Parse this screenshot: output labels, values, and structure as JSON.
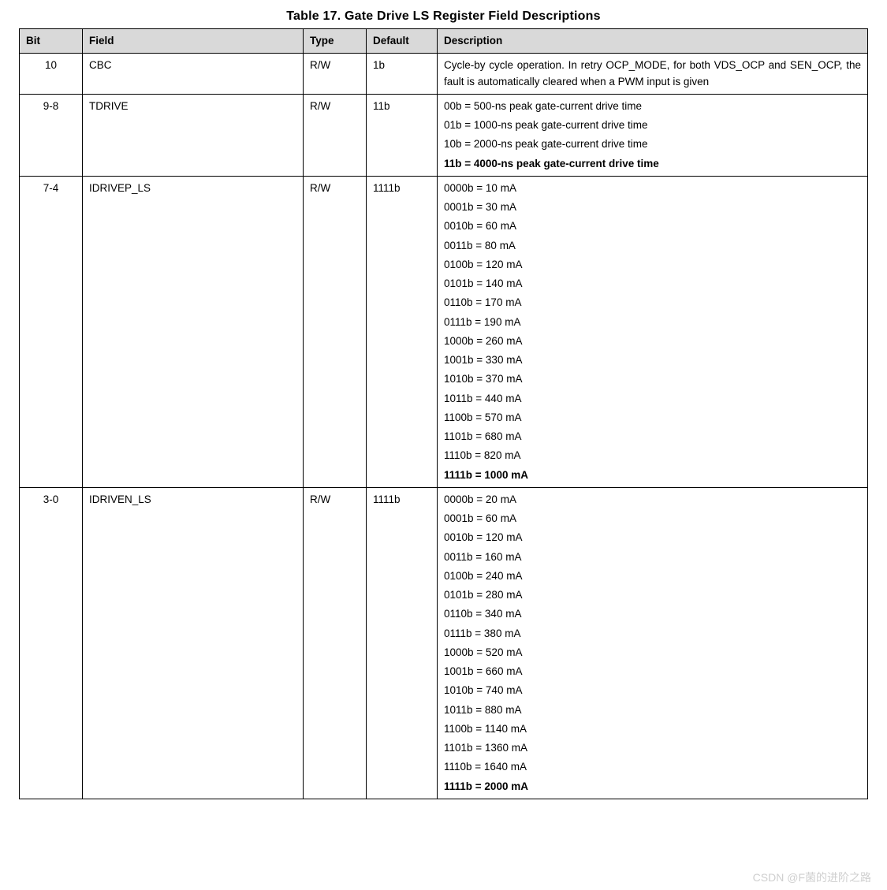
{
  "title": "Table 17. Gate Drive LS Register Field Descriptions",
  "columns": [
    "Bit",
    "Field",
    "Type",
    "Default",
    "Description"
  ],
  "rows": [
    {
      "bit": "10",
      "field": "CBC",
      "type": "R/W",
      "def": "1b",
      "desc": [
        {
          "text": "Cycle-by cycle operation. In retry OCP_MODE, for both VDS_OCP and SEN_OCP, the fault is automatically cleared when a PWM input is given",
          "bold": false,
          "justify": true
        }
      ]
    },
    {
      "bit": "9-8",
      "field": "TDRIVE",
      "type": "R/W",
      "def": "11b",
      "desc": [
        {
          "text": "00b = 500-ns peak gate-current drive time",
          "bold": false
        },
        {
          "text": "01b = 1000-ns peak gate-current drive time",
          "bold": false
        },
        {
          "text": "10b = 2000-ns peak gate-current drive time",
          "bold": false
        },
        {
          "text": "11b = 4000-ns peak gate-current drive time",
          "bold": true
        }
      ]
    },
    {
      "bit": "7-4",
      "field": "IDRIVEP_LS",
      "type": "R/W",
      "def": "1111b",
      "desc": [
        {
          "text": "0000b = 10 mA",
          "bold": false
        },
        {
          "text": "0001b = 30 mA",
          "bold": false
        },
        {
          "text": "0010b = 60 mA",
          "bold": false
        },
        {
          "text": "0011b = 80 mA",
          "bold": false
        },
        {
          "text": "0100b = 120 mA",
          "bold": false
        },
        {
          "text": "0101b = 140 mA",
          "bold": false
        },
        {
          "text": "0110b = 170 mA",
          "bold": false
        },
        {
          "text": "0111b = 190 mA",
          "bold": false
        },
        {
          "text": "1000b = 260 mA",
          "bold": false
        },
        {
          "text": "1001b = 330 mA",
          "bold": false
        },
        {
          "text": "1010b = 370 mA",
          "bold": false
        },
        {
          "text": "1011b = 440 mA",
          "bold": false
        },
        {
          "text": "1100b = 570 mA",
          "bold": false
        },
        {
          "text": "1101b = 680 mA",
          "bold": false
        },
        {
          "text": "1110b = 820 mA",
          "bold": false
        },
        {
          "text": "1111b = 1000 mA",
          "bold": true
        }
      ]
    },
    {
      "bit": "3-0",
      "field": "IDRIVEN_LS",
      "type": "R/W",
      "def": "1111b",
      "desc": [
        {
          "text": "0000b = 20 mA",
          "bold": false
        },
        {
          "text": "0001b = 60 mA",
          "bold": false
        },
        {
          "text": "0010b = 120 mA",
          "bold": false
        },
        {
          "text": "0011b = 160 mA",
          "bold": false
        },
        {
          "text": "0100b = 240 mA",
          "bold": false
        },
        {
          "text": "0101b = 280 mA",
          "bold": false
        },
        {
          "text": "0110b = 340 mA",
          "bold": false
        },
        {
          "text": "0111b = 380 mA",
          "bold": false
        },
        {
          "text": "1000b = 520 mA",
          "bold": false
        },
        {
          "text": "1001b = 660 mA",
          "bold": false
        },
        {
          "text": "1010b = 740 mA",
          "bold": false
        },
        {
          "text": "1011b = 880 mA",
          "bold": false
        },
        {
          "text": "1100b = 1140 mA",
          "bold": false
        },
        {
          "text": "1101b = 1360 mA",
          "bold": false
        },
        {
          "text": "1110b = 1640 mA",
          "bold": false
        },
        {
          "text": "1111b = 2000 mA",
          "bold": true
        }
      ]
    }
  ],
  "watermark": "CSDN @F菌的进阶之路"
}
